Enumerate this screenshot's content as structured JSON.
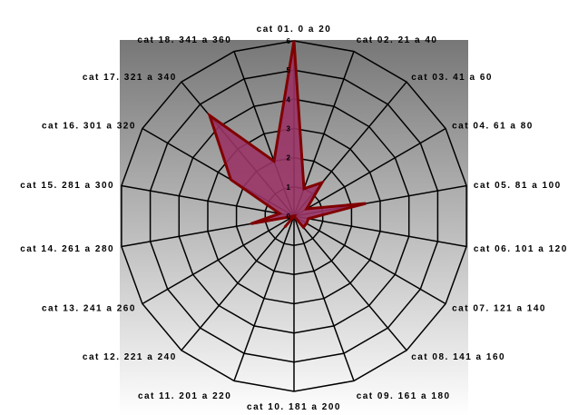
{
  "chart_data": {
    "type": "radar",
    "title": "",
    "categories": [
      "cat 01. 0 a 20",
      "cat 02. 21 a 40",
      "cat 03. 41 a 60",
      "cat 04. 61 a 80",
      "cat 05. 81 a 100",
      "cat 06. 101 a 120",
      "cat 07. 121 a 140",
      "cat 08. 141 a 160",
      "cat 09. 161 a 180",
      "cat 10. 181 a 200",
      "cat 11. 201 a 220",
      "cat 12. 221 a 240",
      "cat 13. 241 a 260",
      "cat 14. 261 a 280",
      "cat 15. 281 a 300",
      "cat 16. 301 a 320",
      "cat 17. 321 a 340",
      "cat 18. 341 a 360"
    ],
    "series": [
      {
        "values": [
          6,
          1,
          1.5,
          0.5,
          2.5,
          0.5,
          0.5,
          0.5,
          0,
          0,
          0,
          0.5,
          0,
          1.5,
          0.5,
          2.5,
          4.5,
          2
        ]
      }
    ],
    "radial_ticks": [
      0,
      1,
      2,
      3,
      4,
      5,
      6
    ],
    "rmax": 6,
    "grid": true,
    "colors": {
      "series_fill": "#993366",
      "series_stroke": "#800000",
      "grid": "#000000",
      "bg_top": "#777777",
      "bg_bottom": "#ffffff"
    }
  }
}
